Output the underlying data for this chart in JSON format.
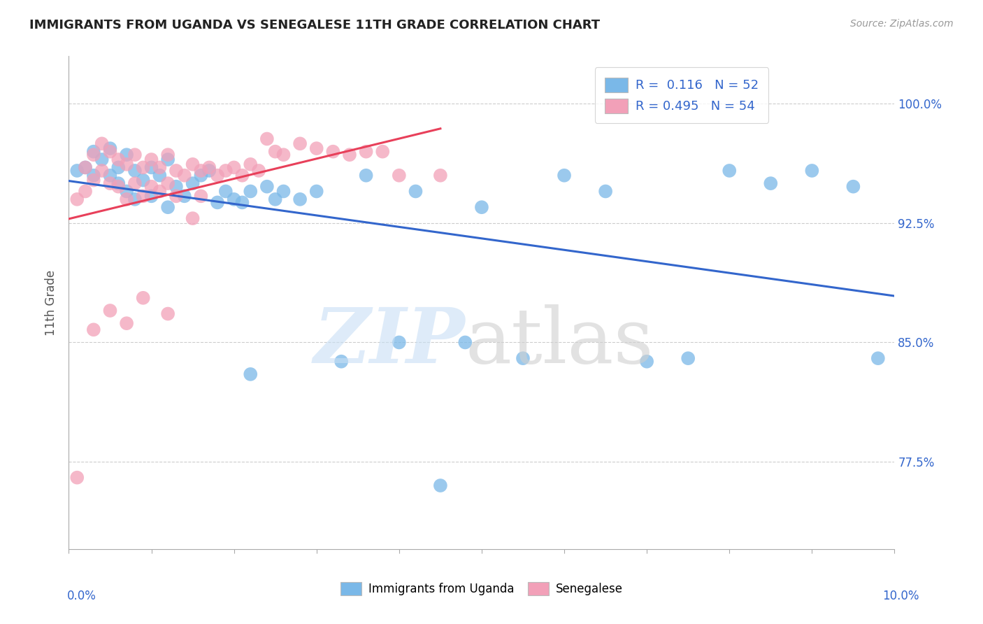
{
  "title": "IMMIGRANTS FROM UGANDA VS SENEGALESE 11TH GRADE CORRELATION CHART",
  "source": "Source: ZipAtlas.com",
  "ylabel": "11th Grade",
  "ytick_labels": [
    "77.5%",
    "85.0%",
    "92.5%",
    "100.0%"
  ],
  "ytick_values": [
    0.775,
    0.85,
    0.925,
    1.0
  ],
  "xlim": [
    0.0,
    0.1
  ],
  "ylim": [
    0.72,
    1.03
  ],
  "color_uganda": "#7ab8e8",
  "color_senegalese": "#f2a0b8",
  "line_color_uganda": "#3366cc",
  "line_color_senegalese": "#e8405a",
  "uganda_x": [
    0.001,
    0.002,
    0.003,
    0.003,
    0.004,
    0.005,
    0.005,
    0.006,
    0.006,
    0.007,
    0.007,
    0.008,
    0.008,
    0.009,
    0.01,
    0.01,
    0.011,
    0.012,
    0.012,
    0.013,
    0.014,
    0.015,
    0.016,
    0.017,
    0.018,
    0.019,
    0.02,
    0.021,
    0.022,
    0.024,
    0.025,
    0.026,
    0.028,
    0.03,
    0.033,
    0.036,
    0.04,
    0.042,
    0.048,
    0.05,
    0.055,
    0.06,
    0.065,
    0.07,
    0.075,
    0.08,
    0.085,
    0.09,
    0.095,
    0.098,
    0.022,
    0.045
  ],
  "uganda_y": [
    0.958,
    0.96,
    0.97,
    0.955,
    0.965,
    0.972,
    0.955,
    0.96,
    0.95,
    0.968,
    0.945,
    0.958,
    0.94,
    0.952,
    0.96,
    0.942,
    0.955,
    0.965,
    0.935,
    0.948,
    0.942,
    0.95,
    0.955,
    0.958,
    0.938,
    0.945,
    0.94,
    0.938,
    0.945,
    0.948,
    0.94,
    0.945,
    0.94,
    0.945,
    0.838,
    0.955,
    0.85,
    0.945,
    0.85,
    0.935,
    0.84,
    0.955,
    0.945,
    0.838,
    0.84,
    0.958,
    0.95,
    0.958,
    0.948,
    0.84,
    0.83,
    0.76
  ],
  "senegalese_x": [
    0.001,
    0.002,
    0.002,
    0.003,
    0.003,
    0.004,
    0.004,
    0.005,
    0.005,
    0.006,
    0.006,
    0.007,
    0.007,
    0.008,
    0.008,
    0.009,
    0.009,
    0.01,
    0.01,
    0.011,
    0.011,
    0.012,
    0.012,
    0.013,
    0.013,
    0.014,
    0.015,
    0.016,
    0.016,
    0.017,
    0.018,
    0.019,
    0.02,
    0.021,
    0.022,
    0.023,
    0.024,
    0.025,
    0.026,
    0.028,
    0.03,
    0.032,
    0.034,
    0.036,
    0.038,
    0.04,
    0.045,
    0.003,
    0.005,
    0.007,
    0.001,
    0.009,
    0.012,
    0.015
  ],
  "senegalese_y": [
    0.94,
    0.96,
    0.945,
    0.968,
    0.952,
    0.975,
    0.958,
    0.97,
    0.95,
    0.965,
    0.948,
    0.962,
    0.94,
    0.968,
    0.95,
    0.96,
    0.942,
    0.965,
    0.948,
    0.96,
    0.945,
    0.968,
    0.95,
    0.958,
    0.942,
    0.955,
    0.962,
    0.958,
    0.942,
    0.96,
    0.955,
    0.958,
    0.96,
    0.955,
    0.962,
    0.958,
    0.978,
    0.97,
    0.968,
    0.975,
    0.972,
    0.97,
    0.968,
    0.97,
    0.97,
    0.955,
    0.955,
    0.858,
    0.87,
    0.862,
    0.765,
    0.878,
    0.868,
    0.928
  ]
}
